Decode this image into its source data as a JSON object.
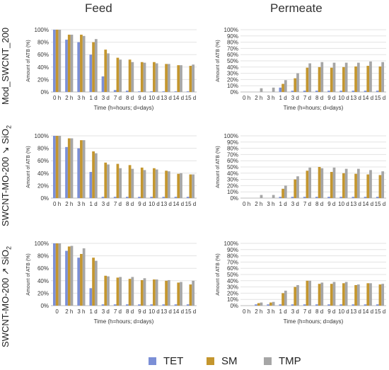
{
  "titles": {
    "feed": "Feed",
    "permeate": "Permeate"
  },
  "rows": [
    {
      "label_main": "Mod_SWCNT_200",
      "label_sub": ""
    },
    {
      "label_main": "SWCNT-MO-200 ↘ SiO",
      "label_sub": "2"
    },
    {
      "label_main": "SWCNT-MO-200 ↗ SiO",
      "label_sub": "2"
    }
  ],
  "colors": {
    "TET": "#7b8fd6",
    "SM": "#c4962e",
    "TMP": "#a6a6a6"
  },
  "legend": [
    "TET",
    "SM",
    "TMP"
  ],
  "chart_data": [
    {
      "type": "bar",
      "panel": "feed-1",
      "ylabel": "Amount of ATB (%)",
      "xlabel": "Time (h=hours; d=days)",
      "ylim": [
        0,
        100
      ],
      "yticks": [
        "0%",
        "20%",
        "40%",
        "60%",
        "80%",
        "100%"
      ],
      "categories": [
        "0 h",
        "2 h",
        "3 h",
        "1 d",
        "3 d",
        "7 d",
        "8 d",
        "9 d",
        "10 d",
        "13 d",
        "14 d",
        "15 d"
      ],
      "series": [
        {
          "name": "TET",
          "values": [
            100,
            84,
            80,
            60,
            25,
            3,
            2,
            1,
            1,
            1,
            1,
            1
          ]
        },
        {
          "name": "SM",
          "values": [
            100,
            92,
            92,
            80,
            68,
            55,
            52,
            48,
            48,
            45,
            43,
            42
          ]
        },
        {
          "name": "TMP",
          "values": [
            100,
            92,
            90,
            85,
            62,
            52,
            48,
            47,
            46,
            45,
            43,
            44
          ]
        }
      ]
    },
    {
      "type": "bar",
      "panel": "permeate-1",
      "ylabel": "Amount of ATB (%)",
      "xlabel": "Time (h=hours; d=days)",
      "ylim": [
        0,
        100
      ],
      "yticks": [
        "0%",
        "10%",
        "20%",
        "30%",
        "40%",
        "50%",
        "60%",
        "70%",
        "80%",
        "90%",
        "100%"
      ],
      "categories": [
        "0 h",
        "2 h",
        "3 h",
        "1 d",
        "3 d",
        "7 d",
        "8 d",
        "9 d",
        "10 d",
        "13 d",
        "14 d",
        "15 d"
      ],
      "series": [
        {
          "name": "TET",
          "values": [
            0,
            0,
            0,
            7,
            2,
            2,
            2,
            2,
            2,
            2,
            2,
            2
          ]
        },
        {
          "name": "SM",
          "values": [
            0,
            0,
            0,
            13,
            22,
            39,
            40,
            39,
            40,
            41,
            42,
            41
          ]
        },
        {
          "name": "TMP",
          "values": [
            0,
            6,
            7,
            19,
            30,
            46,
            48,
            47,
            47,
            47,
            49,
            48
          ]
        }
      ]
    },
    {
      "type": "bar",
      "panel": "feed-2",
      "ylabel": "Amount of ATB (%)",
      "xlabel": "",
      "ylim": [
        0,
        100
      ],
      "yticks": [
        "0%",
        "20%",
        "40%",
        "60%",
        "80%",
        "100%"
      ],
      "categories": [
        "0 h",
        "2 h",
        "3 h",
        "1 d",
        "3 d",
        "7 d",
        "8 d",
        "9 d",
        "10 d",
        "13 d",
        "14 d",
        "15 d"
      ],
      "series": [
        {
          "name": "TET",
          "values": [
            100,
            82,
            80,
            42,
            2,
            2,
            2,
            2,
            2,
            2,
            2,
            2
          ]
        },
        {
          "name": "SM",
          "values": [
            100,
            96,
            93,
            75,
            57,
            55,
            53,
            49,
            48,
            44,
            39,
            38
          ]
        },
        {
          "name": "TMP",
          "values": [
            100,
            96,
            93,
            72,
            54,
            48,
            47,
            45,
            46,
            43,
            40,
            38
          ]
        }
      ]
    },
    {
      "type": "bar",
      "panel": "permeate-2",
      "ylabel": "Amount of ATB (%)",
      "xlabel": "",
      "ylim": [
        0,
        100
      ],
      "yticks": [
        "0%",
        "10%",
        "20%",
        "30%",
        "40%",
        "50%",
        "60%",
        "70%",
        "80%",
        "90%",
        "100%"
      ],
      "categories": [
        "0 h",
        "2 h",
        "3 h",
        "1 d",
        "3 d",
        "7 d",
        "8 d",
        "9 d",
        "10 d",
        "13 d",
        "14 d",
        "15 d"
      ],
      "series": [
        {
          "name": "TET",
          "values": [
            0,
            0,
            0,
            2,
            2,
            2,
            2,
            2,
            2,
            2,
            2,
            2
          ]
        },
        {
          "name": "SM",
          "values": [
            0,
            0,
            0,
            15,
            30,
            44,
            50,
            42,
            40,
            39,
            38,
            37
          ]
        },
        {
          "name": "TMP",
          "values": [
            0,
            5,
            5,
            20,
            35,
            49,
            48,
            49,
            47,
            47,
            45,
            43
          ]
        }
      ]
    },
    {
      "type": "bar",
      "panel": "feed-3",
      "ylabel": "Amount of ATB (%)",
      "xlabel": "Time (h=hours; d=days)",
      "ylim": [
        0,
        100
      ],
      "yticks": [
        "0%",
        "20%",
        "40%",
        "60%",
        "80%",
        "100%"
      ],
      "categories": [
        "0",
        "2 h",
        "3 h",
        "1 d",
        "3 d",
        "7 d",
        "8 d",
        "9 d",
        "10 d",
        "13 d",
        "14 d",
        "15 d"
      ],
      "series": [
        {
          "name": "TET",
          "values": [
            100,
            88,
            77,
            28,
            2,
            2,
            2,
            2,
            2,
            2,
            2,
            2
          ]
        },
        {
          "name": "SM",
          "values": [
            100,
            95,
            83,
            77,
            48,
            45,
            43,
            41,
            42,
            40,
            37,
            34
          ]
        },
        {
          "name": "TMP",
          "values": [
            100,
            96,
            92,
            72,
            47,
            46,
            46,
            44,
            42,
            41,
            38,
            40
          ]
        }
      ]
    },
    {
      "type": "bar",
      "panel": "permeate-3",
      "ylabel": "Amount of ATB (%)",
      "xlabel": "Time (h=hours; d=days)",
      "ylim": [
        0,
        100
      ],
      "yticks": [
        "0%",
        "10%",
        "20%",
        "30%",
        "40%",
        "50%",
        "60%",
        "70%",
        "80%",
        "90%",
        "100%"
      ],
      "categories": [
        "0 h",
        "2 h",
        "3 h",
        "1 d",
        "3 d",
        "7 d",
        "8 d",
        "9 d",
        "10 d",
        "13 d",
        "14 d",
        "15 d"
      ],
      "series": [
        {
          "name": "TET",
          "values": [
            0,
            2,
            2,
            2,
            2,
            2,
            2,
            2,
            2,
            2,
            2,
            2
          ]
        },
        {
          "name": "SM",
          "values": [
            0,
            4,
            5,
            20,
            30,
            40,
            35,
            35,
            36,
            33,
            36,
            34
          ]
        },
        {
          "name": "TMP",
          "values": [
            0,
            5,
            6,
            24,
            33,
            40,
            37,
            38,
            38,
            34,
            36,
            35
          ]
        }
      ]
    }
  ]
}
